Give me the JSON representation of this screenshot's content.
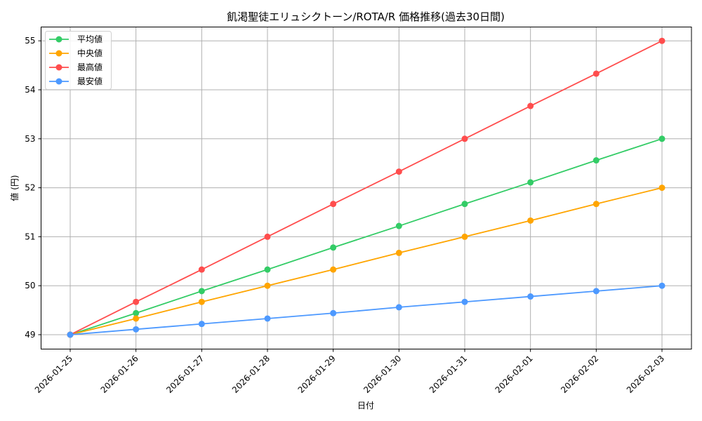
{
  "chart_data": {
    "type": "line",
    "title": "飢渇聖徒エリュシクトーン/ROTA/R 価格推移(過去30日間)",
    "xlabel": "日付",
    "ylabel": "値 (円)",
    "categories": [
      "2026-01-25",
      "2026-01-26",
      "2026-01-27",
      "2026-01-28",
      "2026-01-29",
      "2026-01-30",
      "2026-01-31",
      "2026-02-01",
      "2026-02-02",
      "2026-02-03"
    ],
    "series": [
      {
        "name": "平均値",
        "color": "#33cc66",
        "values": [
          49.0,
          49.44,
          49.89,
          50.33,
          50.78,
          51.22,
          51.67,
          52.11,
          52.56,
          53.0
        ]
      },
      {
        "name": "中央値",
        "color": "#ffa500",
        "values": [
          49.0,
          49.33,
          49.67,
          50.0,
          50.33,
          50.67,
          51.0,
          51.33,
          51.67,
          52.0
        ]
      },
      {
        "name": "最高値",
        "color": "#ff4d4d",
        "values": [
          49.0,
          49.67,
          50.33,
          51.0,
          51.67,
          52.33,
          53.0,
          53.67,
          54.33,
          55.0
        ]
      },
      {
        "name": "最安値",
        "color": "#4d99ff",
        "values": [
          49.0,
          49.11,
          49.22,
          49.33,
          49.44,
          49.56,
          49.67,
          49.78,
          49.89,
          50.0
        ]
      }
    ],
    "yticks": [
      49,
      50,
      51,
      52,
      53,
      54,
      55
    ],
    "ylim": [
      48.7,
      55.3
    ],
    "grid": true,
    "legend_position": "upper left",
    "x_tick_rotation": 45
  }
}
